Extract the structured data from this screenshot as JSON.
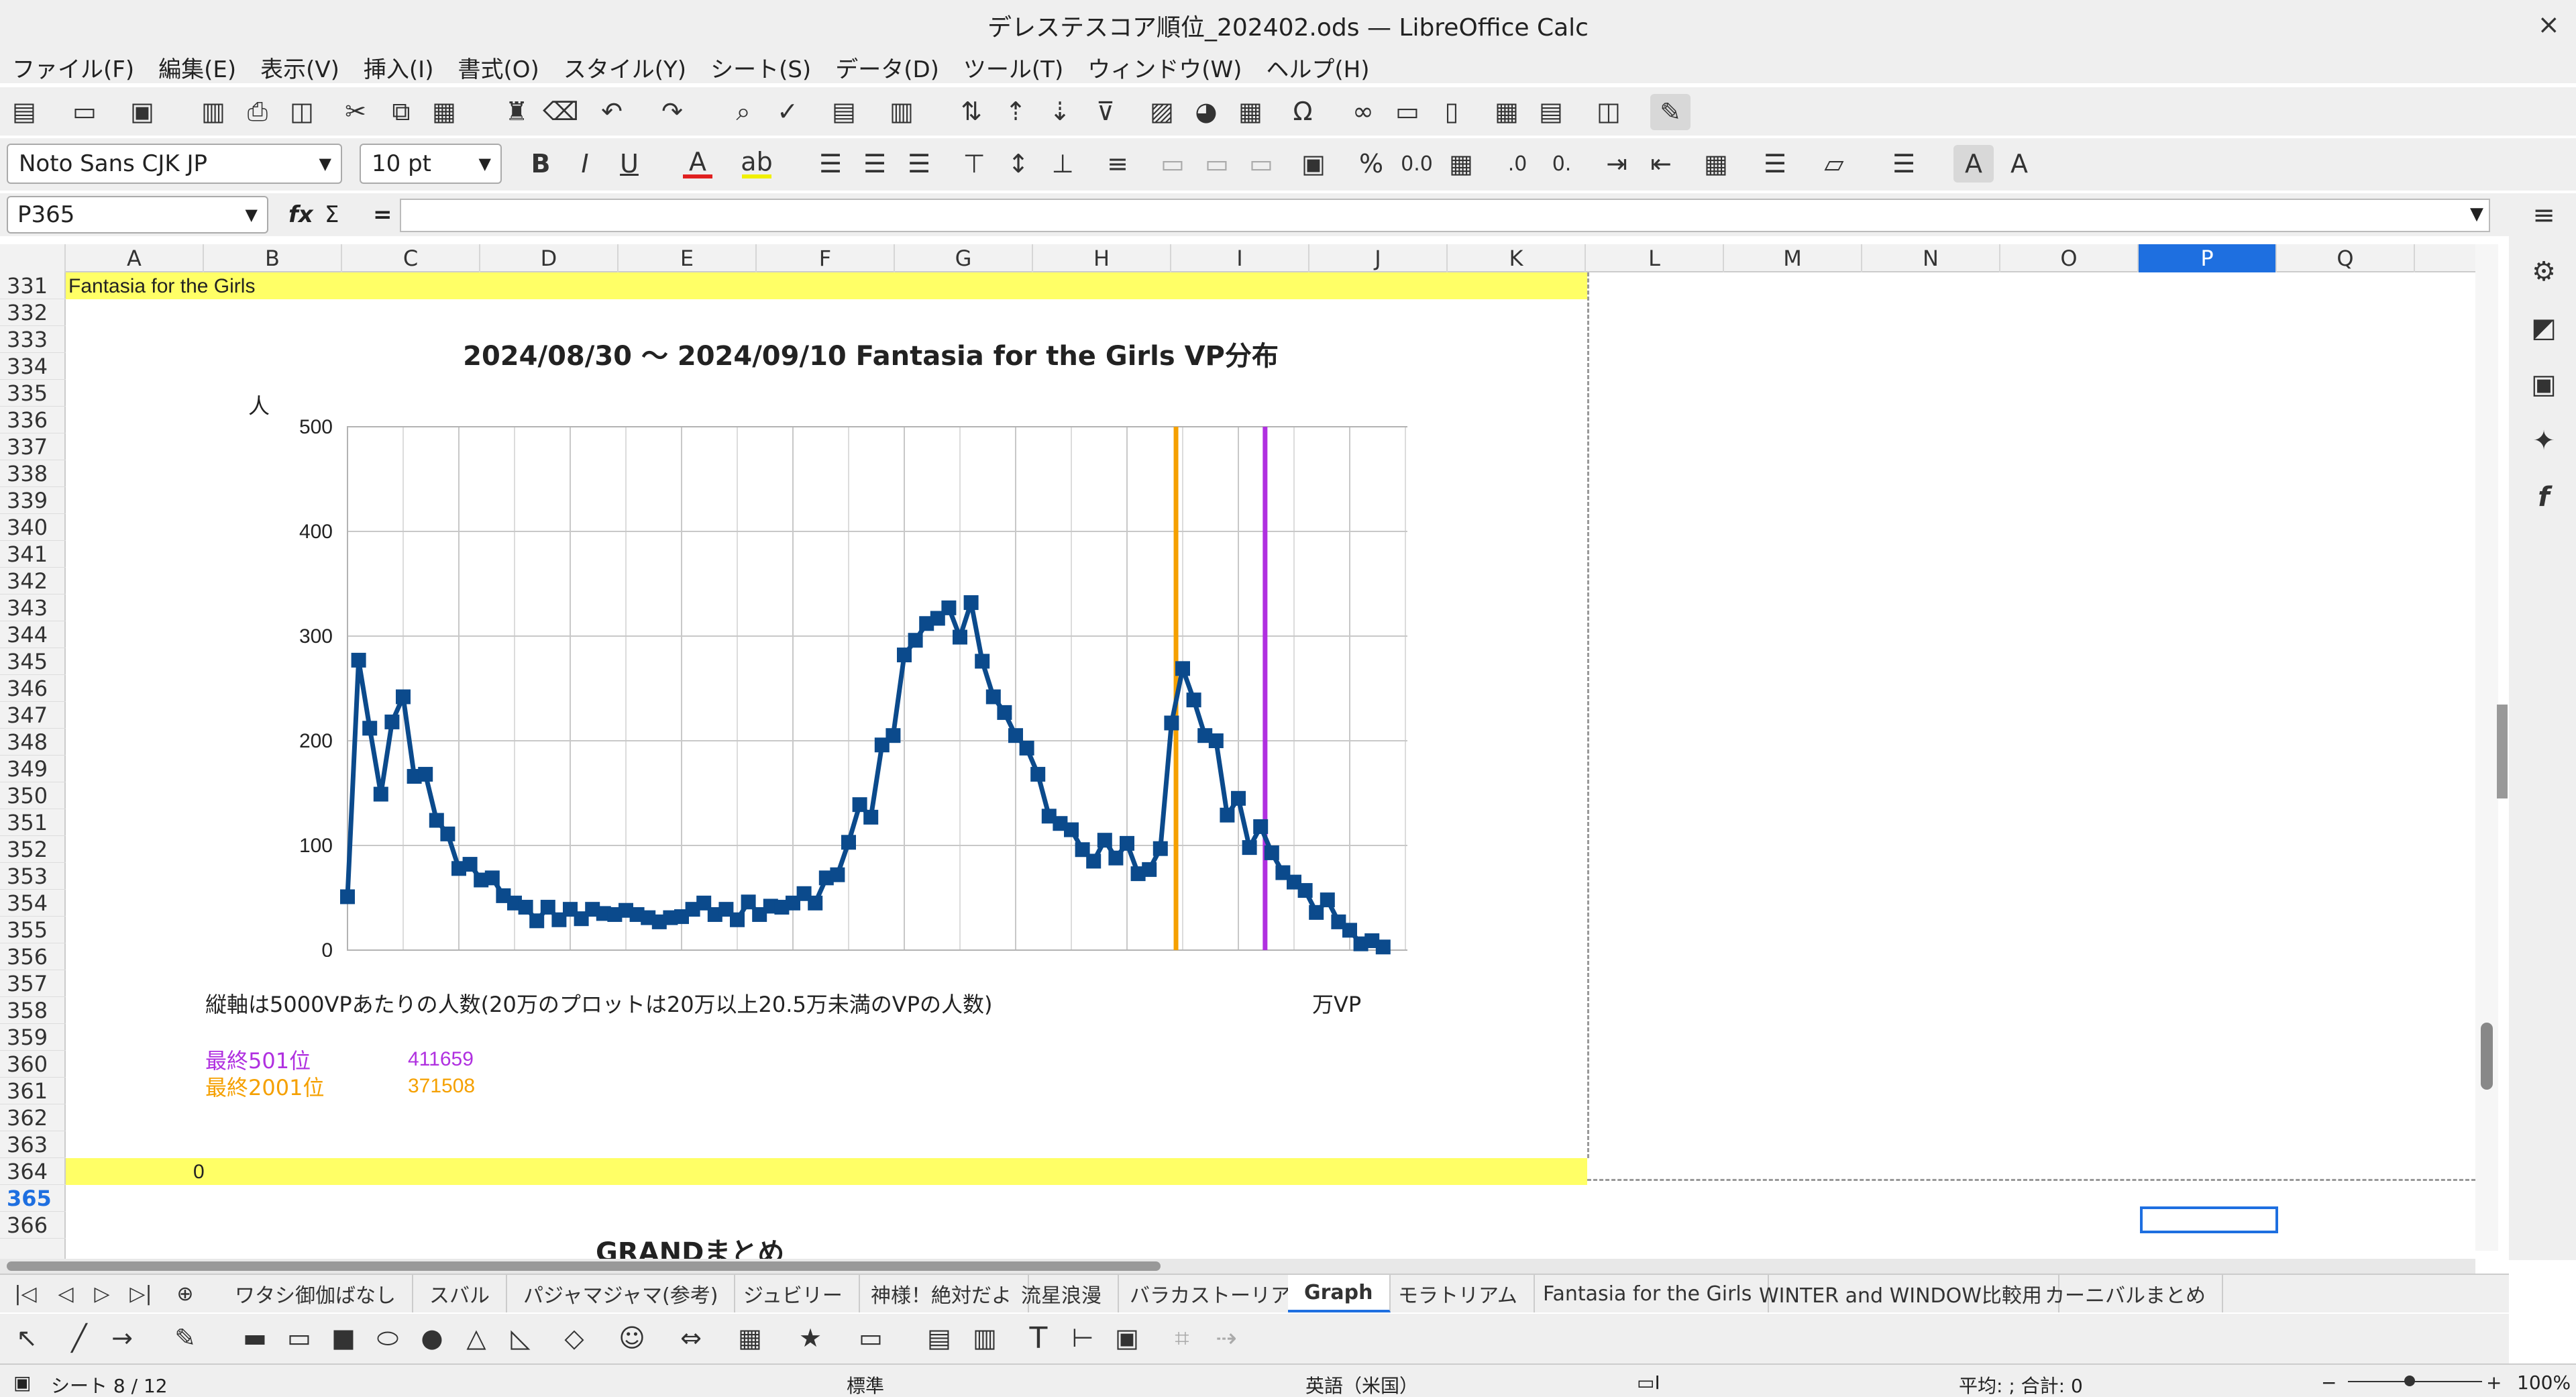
{
  "window": {
    "title": "デレステスコア順位_202402.ods — LibreOffice Calc",
    "close_glyph": "×"
  },
  "menu": [
    "ファイル(F)",
    "編集(E)",
    "表示(V)",
    "挿入(I)",
    "書式(O)",
    "スタイル(Y)",
    "シート(S)",
    "データ(D)",
    "ツール(T)",
    "ウィンドウ(W)",
    "ヘルプ(H)"
  ],
  "toolbar2": {
    "font_name": "Noto Sans CJK JP",
    "font_size": "10 pt"
  },
  "formula_bar": {
    "cell_ref": "P365",
    "fx": "fx",
    "sigma": "Σ",
    "equals": "=",
    "value": ""
  },
  "columns": [
    "A",
    "B",
    "C",
    "D",
    "E",
    "F",
    "G",
    "H",
    "I",
    "J",
    "K",
    "L",
    "M",
    "N",
    "O",
    "P",
    "Q"
  ],
  "selected_column": "P",
  "rows": [
    "331",
    "332",
    "333",
    "334",
    "335",
    "336",
    "337",
    "338",
    "339",
    "340",
    "341",
    "342",
    "343",
    "344",
    "345",
    "346",
    "347",
    "348",
    "349",
    "350",
    "351",
    "352",
    "353",
    "354",
    "355",
    "356",
    "357",
    "358",
    "359",
    "360",
    "361",
    "362",
    "363",
    "364",
    "365",
    "366"
  ],
  "selected_row": "365",
  "cells": {
    "a331": "Fantasia for the Girls",
    "note357": "縦軸は5000VPあたりの人数(20万のプロットは20万以上20.5万未満のVPの人数)",
    "unit357": "万VP",
    "label501": "最終501位",
    "value501": "411659",
    "label2001": "最終2001位",
    "value2001": "371508",
    "b364": "0",
    "grand": "GRANDまとめ"
  },
  "colors": {
    "rank501": "#b030e0",
    "rank2001": "#f5a000",
    "series": "#0b4a8c",
    "highlight": "#ffff66",
    "accent": "#1e6fe0"
  },
  "chart_data": {
    "type": "line",
    "title": "2024/08/30 〜 2024/09/10 Fantasia for the Girls VP分布",
    "ylabel": "人",
    "xlabel": "",
    "xlim": [
      0,
      50
    ],
    "ylim": [
      0,
      500
    ],
    "xticks": [
      0,
      5,
      10,
      15,
      20,
      25,
      30,
      35,
      40,
      45,
      50
    ],
    "yticks": [
      0,
      100,
      200,
      300,
      400,
      500
    ],
    "grid": true,
    "series": [
      {
        "x": [
          0,
          0.5,
          1,
          1.5,
          2,
          2.5,
          3,
          3.5,
          4,
          4.5,
          5,
          5.5,
          6,
          6.5,
          7,
          7.5,
          8,
          8.5,
          9,
          9.5,
          10,
          10.5,
          11,
          11.5,
          12,
          12.5,
          13,
          13.5,
          14,
          14.5,
          15,
          15.5,
          16,
          16.5,
          17,
          17.5,
          18,
          18.5,
          19,
          19.5,
          20,
          20.5,
          21,
          21.5,
          22,
          22.5,
          23,
          23.5,
          24,
          24.5,
          25,
          25.5,
          26,
          26.5,
          27,
          27.5,
          28,
          28.5,
          29,
          29.5,
          30,
          30.5,
          31,
          31.5,
          32,
          32.5,
          33,
          33.5,
          34,
          34.5,
          35,
          35.5,
          36,
          36.5,
          37,
          37.5,
          38,
          38.5,
          39,
          39.5,
          40,
          40.5,
          41,
          41.5,
          42,
          42.5,
          43,
          43.5,
          44,
          44.5,
          45,
          45.5,
          46,
          46.5
        ],
        "y": [
          51,
          277,
          212,
          149,
          218,
          242,
          166,
          168,
          124,
          111,
          78,
          82,
          67,
          69,
          52,
          45,
          41,
          28,
          41,
          29,
          39,
          30,
          39,
          35,
          34,
          38,
          34,
          31,
          27,
          31,
          32,
          39,
          45,
          34,
          39,
          29,
          46,
          34,
          42,
          41,
          45,
          54,
          45,
          69,
          72,
          103,
          139,
          127,
          196,
          205,
          282,
          296,
          312,
          317,
          327,
          299,
          332,
          276,
          242,
          227,
          205,
          193,
          168,
          128,
          121,
          115,
          96,
          85,
          105,
          88,
          102,
          73,
          77,
          97,
          217,
          269,
          239,
          205,
          200,
          129,
          145,
          98,
          118,
          93,
          74,
          65,
          57,
          36,
          48,
          27,
          19,
          6,
          9,
          3
        ]
      }
    ],
    "vlines": [
      {
        "x": 37.2,
        "color": "#f5a000"
      },
      {
        "x": 41.2,
        "color": "#b030e0"
      }
    ]
  },
  "sheet_tabs": [
    "ワタシ御伽ばなし",
    "スバル",
    "パジャマジャマ(参考)",
    "ジュビリー",
    "神様！絶対だよ",
    "流星浪漫",
    "バラカストーリア",
    "Graph",
    "モラトリアム",
    "Fantasia for the Girls",
    "WINTER and WINDOW比較用",
    "カーニバルまとめ"
  ],
  "active_tab": "Graph",
  "status": {
    "sheet": "シート 8 / 12",
    "style": "標準",
    "lang": "英語（米国）",
    "sum": "平均: ; 合計: 0",
    "zoom": "100%"
  }
}
